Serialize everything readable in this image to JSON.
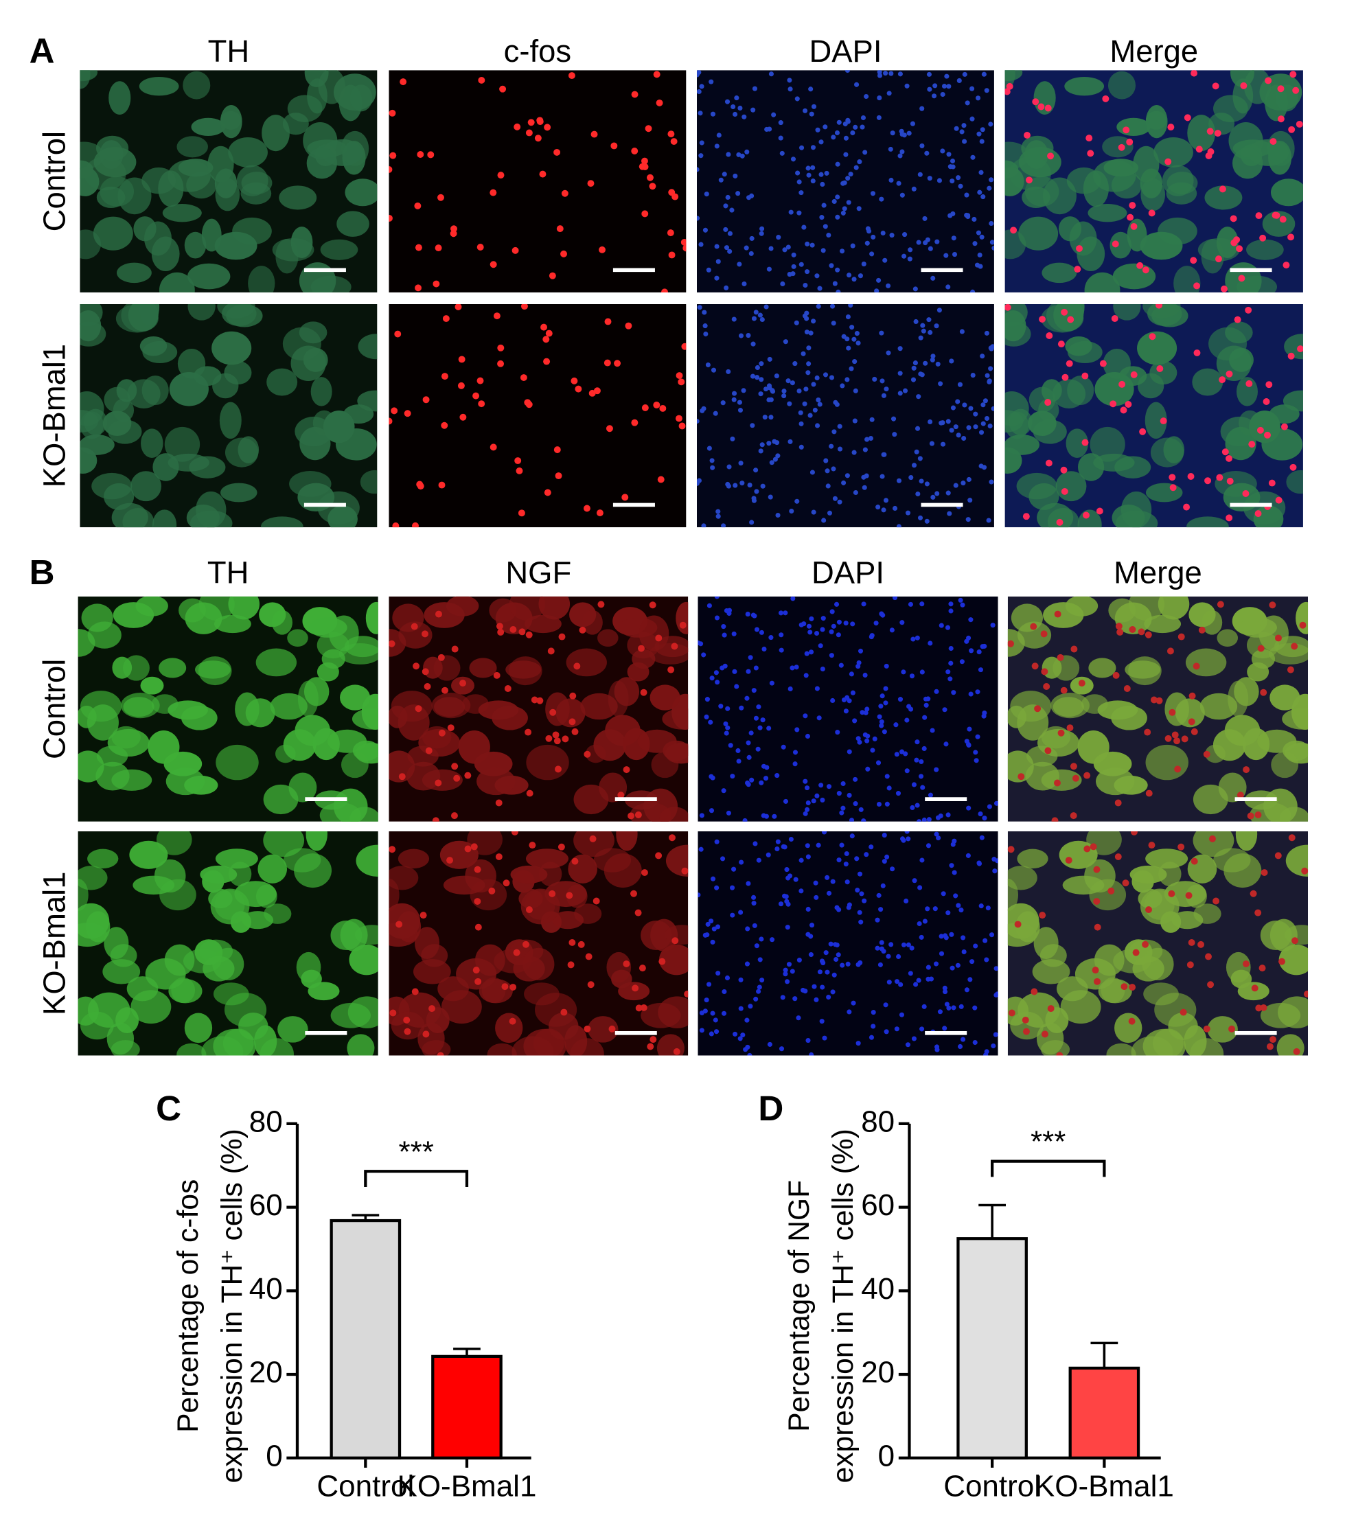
{
  "panels": [
    {
      "label": "A",
      "columns": [
        "TH",
        "c-fos",
        "DAPI",
        "Merge"
      ],
      "rows": [
        "Control",
        "KO-Bmal1"
      ]
    },
    {
      "label": "B",
      "columns": [
        "TH",
        "NGF",
        "DAPI",
        "Merge"
      ],
      "rows": [
        "Control",
        "KO-Bmal1"
      ]
    }
  ],
  "chart_data": [
    {
      "type": "bar",
      "panel_label": "C",
      "y_label": [
        "Percentage of c-fos",
        "expression in TH⁺ cells (%)"
      ],
      "categories": [
        "Control",
        "KO-Bmal1"
      ],
      "values": [
        56.8,
        24.3
      ],
      "errors": [
        1.3,
        1.8
      ],
      "colors": [
        "#d9d9d9",
        "#ff0000"
      ],
      "ylim": [
        0,
        80
      ],
      "yticks": [
        0,
        20,
        40,
        60,
        80
      ],
      "annotation": "***"
    },
    {
      "type": "bar",
      "panel_label": "D",
      "y_label": [
        "Percentage of NGF",
        "expression in TH⁺ cells (%)"
      ],
      "categories": [
        "Control",
        "KO-Bmal1"
      ],
      "values": [
        52.5,
        21.5
      ],
      "errors": [
        8,
        6
      ],
      "colors": [
        "#e0e0e0",
        "#ff4444"
      ],
      "ylim": [
        0,
        80
      ],
      "yticks": [
        0,
        20,
        40,
        60,
        80
      ],
      "annotation": "***"
    }
  ]
}
